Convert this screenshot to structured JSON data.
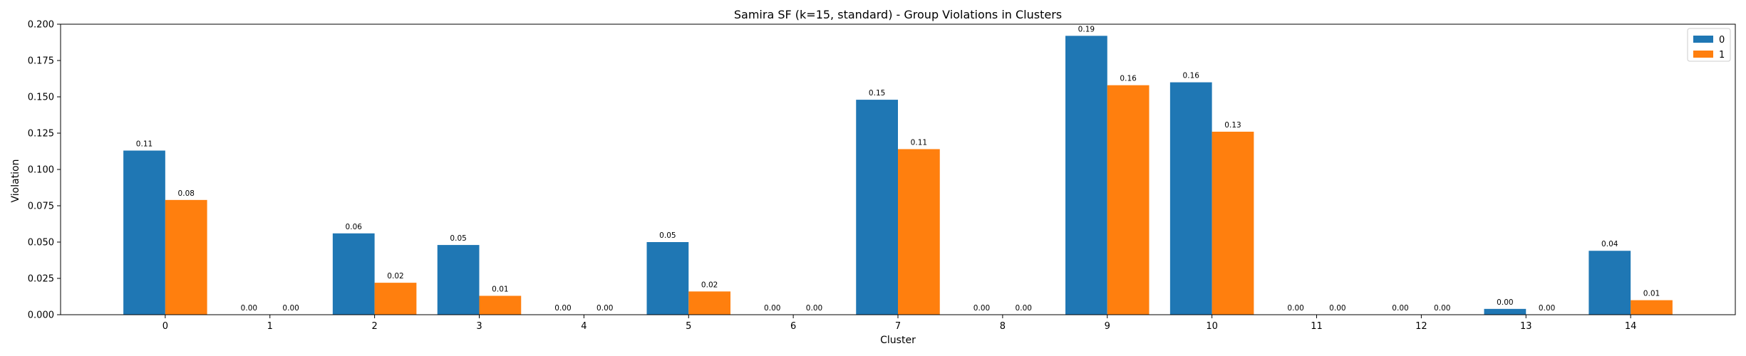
{
  "chart_data": {
    "type": "bar",
    "title": "Samira SF (k=15, standard) - Group Violations in Clusters",
    "xlabel": "Cluster",
    "ylabel": "Violation",
    "categories": [
      "0",
      "1",
      "2",
      "3",
      "4",
      "5",
      "6",
      "7",
      "8",
      "9",
      "10",
      "11",
      "12",
      "13",
      "14"
    ],
    "ylim": [
      0,
      0.2
    ],
    "yticks": [
      "0.000",
      "0.025",
      "0.050",
      "0.075",
      "0.100",
      "0.125",
      "0.150",
      "0.175",
      "0.200"
    ],
    "grid": false,
    "legend_position": "top-right",
    "series": [
      {
        "name": "0",
        "color": "#1f77b4",
        "values": [
          0.113,
          0.0,
          0.056,
          0.048,
          0.0,
          0.05,
          0.0,
          0.148,
          0.0,
          0.192,
          0.16,
          0.0,
          0.0,
          0.004,
          0.044
        ],
        "labels": [
          "0.11",
          "0.00",
          "0.06",
          "0.05",
          "0.00",
          "0.05",
          "0.00",
          "0.15",
          "0.00",
          "0.19",
          "0.16",
          "0.00",
          "0.00",
          "0.00",
          "0.04"
        ]
      },
      {
        "name": "1",
        "color": "#ff7f0e",
        "values": [
          0.079,
          0.0,
          0.022,
          0.013,
          0.0,
          0.016,
          0.0,
          0.114,
          0.0,
          0.158,
          0.126,
          0.0,
          0.0,
          0.0,
          0.01
        ],
        "labels": [
          "0.08",
          "0.00",
          "0.02",
          "0.01",
          "0.00",
          "0.02",
          "0.00",
          "0.11",
          "0.00",
          "0.16",
          "0.13",
          "0.00",
          "0.00",
          "0.00",
          "0.01"
        ]
      }
    ]
  }
}
